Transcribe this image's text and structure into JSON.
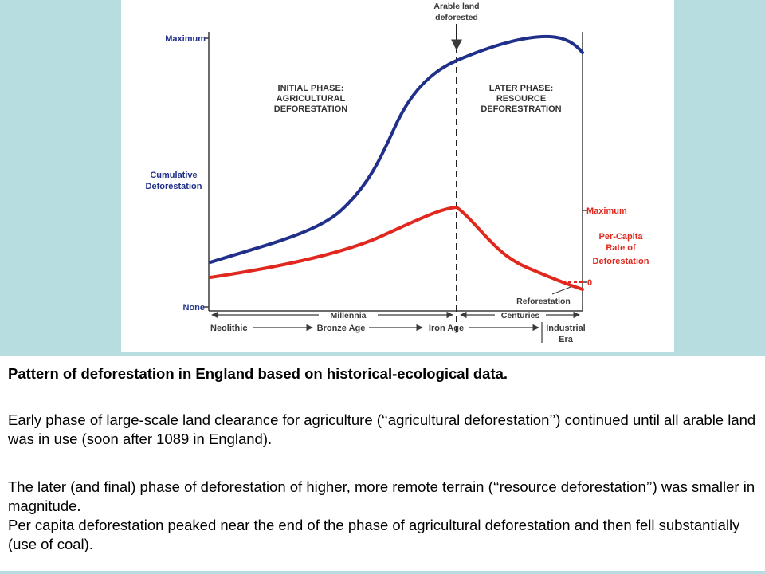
{
  "figure": {
    "top_annotation": [
      "Arable land",
      "deforested"
    ],
    "left_axis": {
      "max_label": "Maximum",
      "mid_label": [
        "Cumulative",
        "Deforestation"
      ],
      "none_label": "None"
    },
    "right_axis": {
      "max_label": "Maximum",
      "series_label": [
        "Per-Capita",
        "Rate of",
        "Deforestation"
      ],
      "zero_label": "0"
    },
    "phase_initial": [
      "INITIAL PHASE:",
      "AGRICULTURAL",
      "DEFORESTATION"
    ],
    "phase_later": [
      "LATER PHASE:",
      "RESOURCE",
      "DEFORESTRATION"
    ],
    "reforestation_label": "Reforestation",
    "timescale_millennia": "Millennia",
    "timescale_centuries": "Centuries",
    "era_neolithic": "Neolithic",
    "era_bronze": "Bronze Age",
    "era_iron": "Iron Age",
    "era_industrial": [
      "Industrial",
      "Era"
    ],
    "colors": {
      "cumulative": "#1f2f8a",
      "per_capita": "#e0281e",
      "axis_label_blue": "#1f2f8a",
      "axis_label_red": "#e0281e",
      "ink": "#3a3a3a"
    }
  },
  "caption": {
    "title": "Pattern of deforestation in England based on historical-ecological data.",
    "paragraph1": "Early phase of large-scale land clearance for agriculture (‘‘agricultural deforestation’’) continued until all arable land was in use (soon after 1089 in England).",
    "paragraph2": "The later (and final) phase of deforestation of higher, more remote terrain (‘‘resource deforestation’’) was smaller in magnitude.",
    "paragraph3": "Per capita deforestation peaked near the end of the phase of agricultural deforestation and then fell substantially (use of coal)."
  }
}
